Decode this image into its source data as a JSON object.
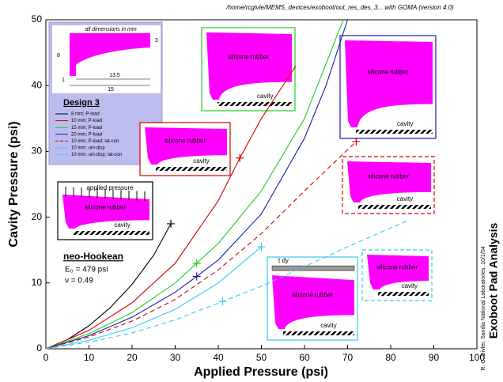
{
  "chart_data": {
    "type": "line",
    "header": "/home/rcgivle/MEMS_devices/exoboot/out_res_des_3... with GOMA (version 4.0)",
    "side_title": "Exoboot Pad Analysis",
    "credit": "R. C. Givler, Sandia National Laboratories, 10/1/04",
    "x_label": "Applied Pressure (psi)",
    "y_label": "Cavity Pressure (psi)",
    "xlim": [
      0,
      100
    ],
    "xticks": [
      0,
      10,
      20,
      30,
      40,
      50,
      60,
      70,
      80,
      90,
      100
    ],
    "ylim": [
      0,
      50
    ],
    "yticks": [
      0,
      10,
      20,
      30,
      40,
      50
    ],
    "grid": false,
    "series": [
      {
        "name": "8 mm; P-load",
        "color": "#000000",
        "dash": false,
        "x": [
          0,
          5,
          10,
          15,
          20,
          25,
          29
        ],
        "values": [
          0,
          1.4,
          3.5,
          6.3,
          9.8,
          14.2,
          19
        ],
        "marker": {
          "x": 29,
          "y": 19
        }
      },
      {
        "name": "10 mm; P-load",
        "color": "#d40000",
        "dash": false,
        "x": [
          0,
          10,
          20,
          30,
          40,
          45,
          50,
          58
        ],
        "values": [
          0,
          2.8,
          7,
          13,
          22.5,
          29,
          35,
          43
        ],
        "marker": {
          "x": 45,
          "y": 29
        }
      },
      {
        "name": "15 mm; P-load",
        "color": "#22cc22",
        "dash": false,
        "x": [
          0,
          10,
          20,
          30,
          35,
          40,
          50,
          60,
          69
        ],
        "values": [
          0,
          2.3,
          5.5,
          10,
          13,
          16,
          24,
          35,
          50
        ],
        "marker": {
          "x": 35,
          "y": 13
        }
      },
      {
        "name": "20 mm; P-load",
        "color": "#1a1aa6",
        "dash": false,
        "x": [
          0,
          10,
          20,
          30,
          35,
          40,
          50,
          60,
          65,
          70
        ],
        "values": [
          0,
          2,
          4.8,
          8.6,
          11,
          13.5,
          20.5,
          32,
          40,
          50
        ],
        "marker": {
          "x": 35,
          "y": 11
        }
      },
      {
        "name": "10 mm; P-load; lat-con",
        "color": "#d40000",
        "dash": true,
        "x": [
          0,
          10,
          20,
          30,
          40,
          50,
          60,
          72
        ],
        "values": [
          0,
          1.8,
          4.2,
          7.5,
          12,
          17.5,
          24,
          31.5
        ],
        "marker": {
          "x": 72,
          "y": 31.5
        }
      },
      {
        "name": "10 mm; uni-disp",
        "color": "#33ccee",
        "dash": false,
        "x": [
          0,
          10,
          20,
          30,
          40,
          50
        ],
        "values": [
          0,
          1.3,
          3.2,
          6,
          10,
          15.5
        ],
        "marker": {
          "x": 50,
          "y": 15.5
        }
      },
      {
        "name": "10 mm; uni-disp; lat-con",
        "color": "#33ccee",
        "dash": true,
        "x": [
          0,
          10,
          20,
          30,
          41,
          50,
          60,
          70,
          84
        ],
        "values": [
          0,
          1,
          2.4,
          4.4,
          7.2,
          9.5,
          12.5,
          15.5,
          19.5
        ],
        "marker": {
          "x": 41,
          "y": 7.2
        }
      }
    ],
    "material": [
      "neo-Hookean",
      "E₀ = 479 psi",
      "ν = 0.49"
    ],
    "design": {
      "title": "Design 3",
      "note": "all dimensions in mm",
      "dims": [
        "3",
        "8",
        "1",
        "13.5",
        "15"
      ]
    },
    "insets": [
      {
        "texts": [
          "silicone rubber",
          "cavity"
        ]
      },
      {
        "texts": [
          "silicone rubber",
          "cavity"
        ]
      },
      {
        "texts": [
          "applied pressure",
          "silicone rubber",
          "cavity"
        ]
      },
      {
        "texts": [
          "silicone rubber",
          "cavity"
        ]
      },
      {
        "texts": [
          "silicone rubber",
          "cavity"
        ]
      },
      {
        "texts": [
          "t dy",
          "silicone rubber",
          "cavity"
        ]
      },
      {
        "texts": [
          "silicone rubber",
          "cavity"
        ]
      }
    ]
  }
}
